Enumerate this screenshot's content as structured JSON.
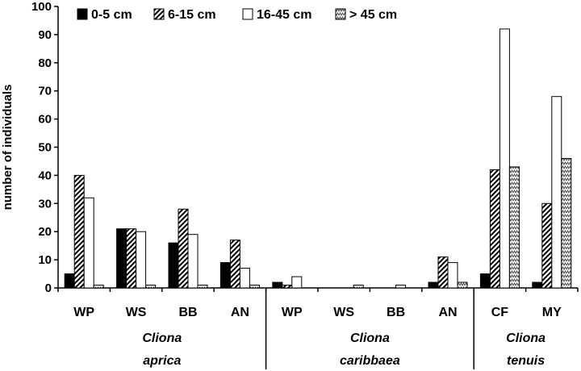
{
  "chart_data": {
    "type": "bar",
    "title": "",
    "xlabel": "",
    "ylabel": "number of individuals",
    "ylim": [
      0,
      100
    ],
    "yticks": [
      0,
      10,
      20,
      30,
      40,
      50,
      60,
      70,
      80,
      90,
      100
    ],
    "grid": false,
    "legend_position": "top-left",
    "categories": [
      "WP",
      "WS",
      "BB",
      "AN",
      "WP",
      "WS",
      "BB",
      "AN",
      "CF",
      "MY"
    ],
    "groups": [
      {
        "name_line1": "Cliona",
        "name_line2": "aprica",
        "categories": [
          0,
          1,
          2,
          3
        ]
      },
      {
        "name_line1": "Cliona",
        "name_line2": "caribbaea",
        "categories": [
          4,
          5,
          6,
          7
        ]
      },
      {
        "name_line1": "Cliona",
        "name_line2": "tenuis",
        "categories": [
          8,
          9
        ]
      }
    ],
    "series": [
      {
        "name": "0-5 cm",
        "pattern": "solid",
        "values": [
          5,
          21,
          16,
          9,
          2,
          0,
          0,
          2,
          5,
          2
        ]
      },
      {
        "name": "6-15 cm",
        "pattern": "hatch",
        "values": [
          40,
          21,
          28,
          17,
          1,
          0,
          0,
          11,
          42,
          30
        ]
      },
      {
        "name": "16-45 cm",
        "pattern": "white",
        "values": [
          32,
          20,
          19,
          7,
          4,
          0,
          1,
          9,
          92,
          68
        ]
      },
      {
        "name": "> 45 cm",
        "pattern": "zigzag",
        "values": [
          1,
          1,
          1,
          1,
          0,
          1,
          0,
          2,
          43,
          46
        ]
      }
    ],
    "colors": {
      "bar_stroke": "#000000",
      "solid_fill": "#000000",
      "white_fill": "#ffffff"
    }
  }
}
